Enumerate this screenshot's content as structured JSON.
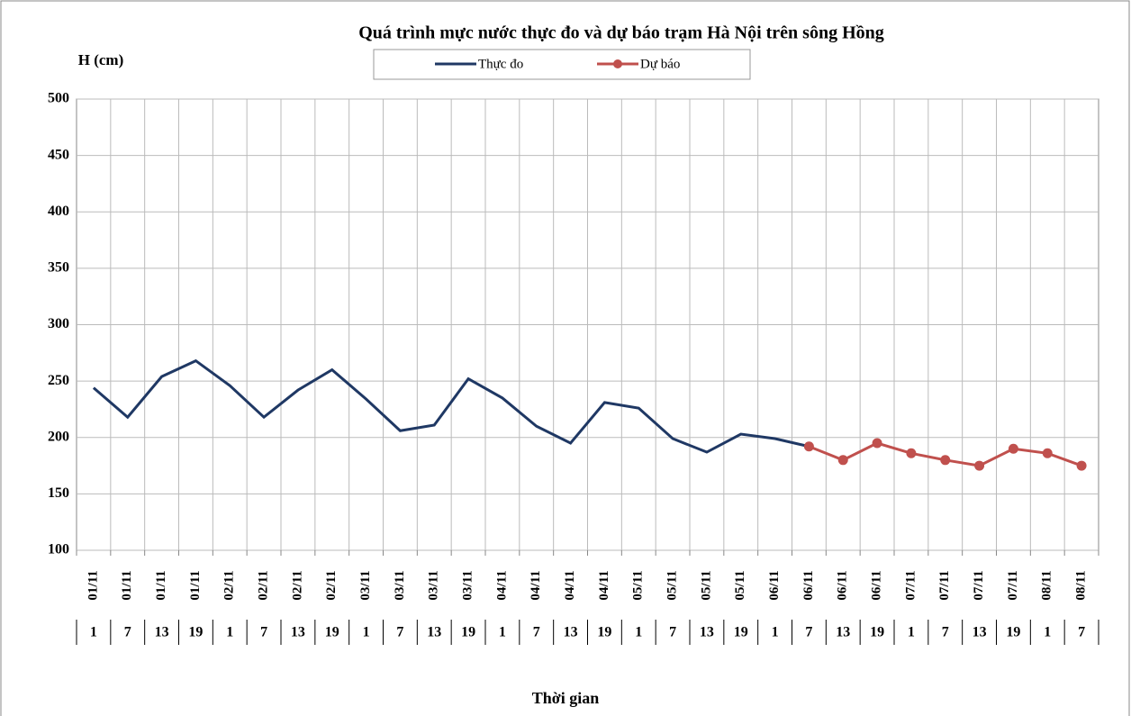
{
  "chart_data": {
    "type": "line",
    "title": "Quá trình  mực nước thực đo và dự báo trạm Hà Nội trên sông Hồng",
    "y_label": "H (cm)",
    "x_label": "Thời gian",
    "categories": [
      "01/11",
      "01/11",
      "01/11",
      "01/11",
      "02/11",
      "02/11",
      "02/11",
      "02/11",
      "03/11",
      "03/11",
      "03/11",
      "03/11",
      "04/11",
      "04/11",
      "04/11",
      "04/11",
      "05/11",
      "05/11",
      "05/11",
      "05/11",
      "06/11",
      "06/11",
      "06/11",
      "06/11",
      "07/11",
      "07/11",
      "07/11",
      "07/11",
      "08/11",
      "08/11"
    ],
    "hours": [
      1,
      7,
      13,
      19,
      1,
      7,
      13,
      19,
      1,
      7,
      13,
      19,
      1,
      7,
      13,
      19,
      1,
      7,
      13,
      19,
      1,
      7,
      13,
      19,
      1,
      7,
      13,
      19,
      1,
      7
    ],
    "series": [
      {
        "name": "Thực đo",
        "color": "#1f3864",
        "markers": false,
        "values": [
          244,
          218,
          254,
          268,
          246,
          218,
          242,
          260,
          234,
          206,
          211,
          252,
          235,
          210,
          195,
          231,
          226,
          199,
          187,
          203,
          199,
          192,
          null,
          null,
          null,
          null,
          null,
          null,
          null,
          null
        ]
      },
      {
        "name": "Dự báo",
        "color": "#c0504d",
        "markers": true,
        "values": [
          null,
          null,
          null,
          null,
          null,
          null,
          null,
          null,
          null,
          null,
          null,
          null,
          null,
          null,
          null,
          null,
          null,
          null,
          null,
          null,
          null,
          192,
          180,
          195,
          186,
          180,
          175,
          190,
          186,
          175
        ]
      }
    ],
    "ylim": [
      100,
      500
    ],
    "yticks": [
      100,
      150,
      200,
      250,
      300,
      350,
      400,
      450,
      500
    ],
    "grid": true
  }
}
